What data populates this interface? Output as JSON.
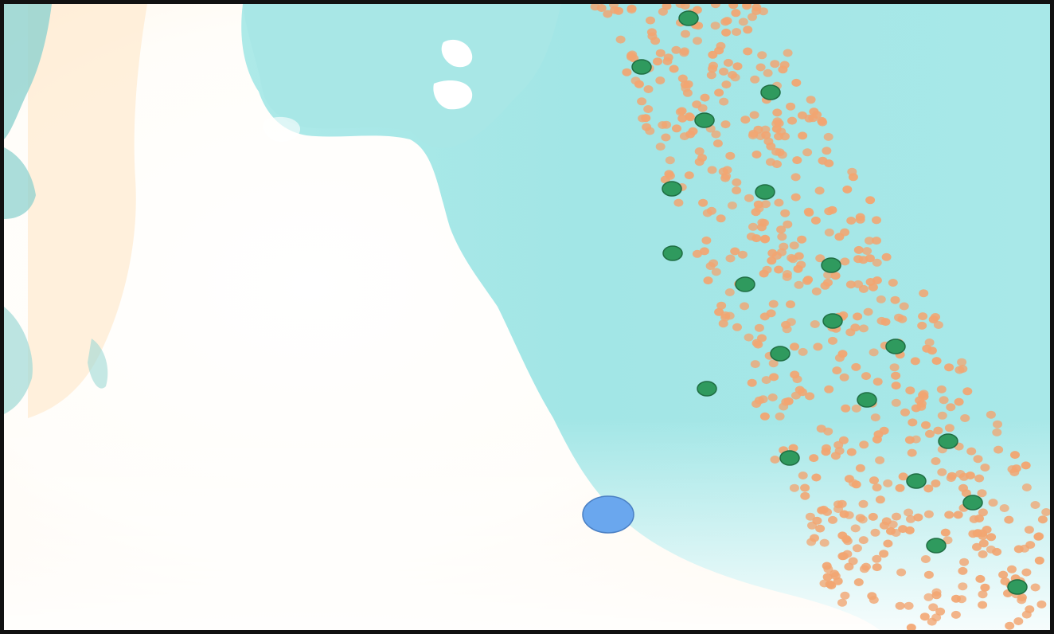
{
  "map": {
    "colors": {
      "sea": "#9fe6e6",
      "sea_light": "#c9f3f1",
      "land": "#fffaf3",
      "land_warm": "#ffe9cf",
      "land_shadow": "#7fc9c7",
      "ship_fill": "#f2a571",
      "platform_fill": "#2f9a5e",
      "platform_stroke": "#1f6e43",
      "location_fill": "#6aa7ee",
      "location_stroke": "#4a7fc3"
    },
    "legend": []
  }
}
